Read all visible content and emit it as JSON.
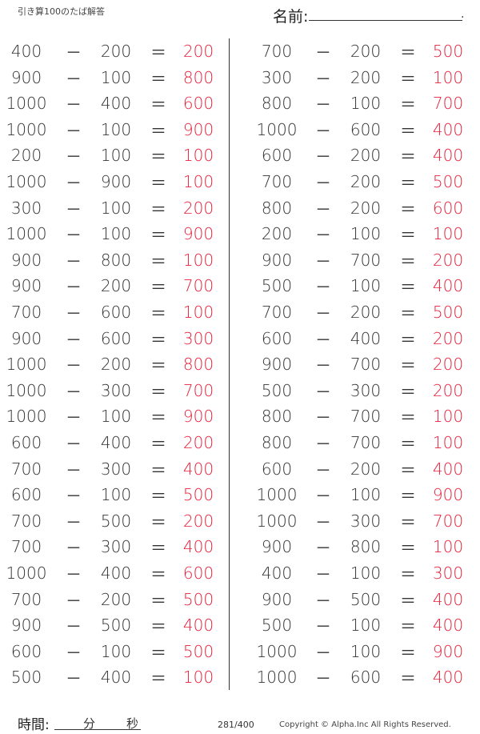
{
  "header": {
    "title": "引き算100のたば解答",
    "name_label": "名前:",
    "name_end": "."
  },
  "operators": {
    "minus": "－",
    "equals": "＝"
  },
  "colors": {
    "answer": "#e8203a",
    "text": "#333333"
  },
  "left_column": [
    [
      "400",
      "200",
      "200"
    ],
    [
      "900",
      "100",
      "800"
    ],
    [
      "1000",
      "400",
      "600"
    ],
    [
      "1000",
      "100",
      "900"
    ],
    [
      "200",
      "100",
      "100"
    ],
    [
      "1000",
      "900",
      "100"
    ],
    [
      "300",
      "100",
      "200"
    ],
    [
      "1000",
      "100",
      "900"
    ],
    [
      "900",
      "800",
      "100"
    ],
    [
      "900",
      "200",
      "700"
    ],
    [
      "700",
      "600",
      "100"
    ],
    [
      "900",
      "600",
      "300"
    ],
    [
      "1000",
      "200",
      "800"
    ],
    [
      "1000",
      "300",
      "700"
    ],
    [
      "1000",
      "100",
      "900"
    ],
    [
      "600",
      "400",
      "200"
    ],
    [
      "700",
      "300",
      "400"
    ],
    [
      "600",
      "100",
      "500"
    ],
    [
      "700",
      "500",
      "200"
    ],
    [
      "700",
      "300",
      "400"
    ],
    [
      "1000",
      "400",
      "600"
    ],
    [
      "700",
      "200",
      "500"
    ],
    [
      "900",
      "500",
      "400"
    ],
    [
      "600",
      "100",
      "500"
    ],
    [
      "500",
      "400",
      "100"
    ]
  ],
  "right_column": [
    [
      "700",
      "200",
      "500"
    ],
    [
      "300",
      "200",
      "100"
    ],
    [
      "800",
      "100",
      "700"
    ],
    [
      "1000",
      "600",
      "400"
    ],
    [
      "600",
      "200",
      "400"
    ],
    [
      "700",
      "200",
      "500"
    ],
    [
      "800",
      "200",
      "600"
    ],
    [
      "200",
      "100",
      "100"
    ],
    [
      "900",
      "700",
      "200"
    ],
    [
      "500",
      "100",
      "400"
    ],
    [
      "700",
      "200",
      "500"
    ],
    [
      "600",
      "400",
      "200"
    ],
    [
      "900",
      "700",
      "200"
    ],
    [
      "500",
      "300",
      "200"
    ],
    [
      "800",
      "700",
      "100"
    ],
    [
      "800",
      "700",
      "100"
    ],
    [
      "600",
      "200",
      "400"
    ],
    [
      "1000",
      "100",
      "900"
    ],
    [
      "1000",
      "300",
      "700"
    ],
    [
      "900",
      "800",
      "100"
    ],
    [
      "400",
      "100",
      "300"
    ],
    [
      "900",
      "500",
      "400"
    ],
    [
      "500",
      "100",
      "400"
    ],
    [
      "1000",
      "100",
      "900"
    ],
    [
      "1000",
      "600",
      "400"
    ]
  ],
  "footer": {
    "time_label": "時間:",
    "minutes": "分",
    "seconds": "秒",
    "page": "281/400",
    "copyright": "Copyright ©  Alpha.Inc All Rights Reserved."
  }
}
